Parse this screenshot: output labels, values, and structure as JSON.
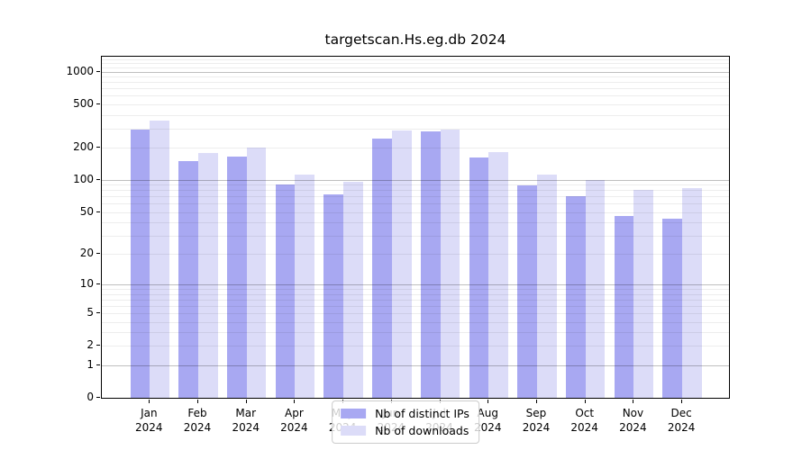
{
  "chart_data": {
    "type": "bar",
    "title": "targetscan.Hs.eg.db 2024",
    "categories": [
      "Jan 2024",
      "Feb 2024",
      "Mar 2024",
      "Apr 2024",
      "May 2024",
      "Jun 2024",
      "Jul 2024",
      "Aug 2024",
      "Sep 2024",
      "Oct 2024",
      "Nov 2024",
      "Dec 2024"
    ],
    "series": [
      {
        "name": "Nb of distinct IPs",
        "color": "#a8a8f2",
        "values": [
          290,
          150,
          163,
          90,
          73,
          240,
          281,
          161,
          89,
          70,
          46,
          43
        ]
      },
      {
        "name": "Nb of downloads",
        "color": "#dcdcf8",
        "values": [
          352,
          176,
          198,
          112,
          96,
          285,
          294,
          180,
          113,
          100,
          81,
          84
        ]
      }
    ],
    "xlabel": "",
    "ylabel": "",
    "yscale": "log10(1+x)",
    "ylim": [
      0,
      1370
    ],
    "yticks": [
      0,
      1,
      2,
      5,
      10,
      20,
      50,
      100,
      200,
      500,
      1000
    ],
    "grid": true,
    "grid_major": [
      1,
      10,
      100,
      1000
    ],
    "grid_minor": [
      2,
      3,
      4,
      5,
      6,
      7,
      8,
      9,
      20,
      30,
      40,
      50,
      60,
      70,
      80,
      90,
      200,
      300,
      400,
      500,
      600,
      700,
      800,
      900,
      1100,
      1200,
      1300
    ],
    "legend_position": "lower center inside plot"
  }
}
